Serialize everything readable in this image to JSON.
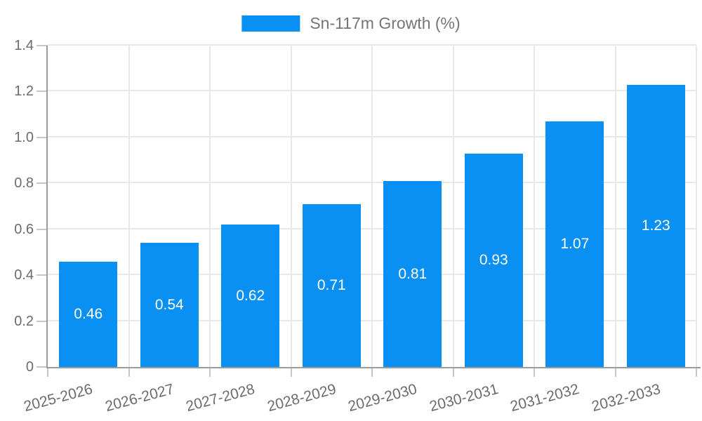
{
  "chart_data": {
    "type": "bar",
    "title": "",
    "categories": [
      "2025-2026",
      "2026-2027",
      "2027-2028",
      "2028-2029",
      "2029-2030",
      "2030-2031",
      "2031-2032",
      "2032-2033"
    ],
    "series": [
      {
        "name": "Sn-117m Growth (%)",
        "values": [
          0.46,
          0.54,
          0.62,
          0.71,
          0.81,
          0.93,
          1.07,
          1.23
        ]
      }
    ],
    "value_labels": [
      "0.46",
      "0.54",
      "0.62",
      "0.71",
      "0.81",
      "0.93",
      "1.07",
      "1.23"
    ],
    "xlabel": "",
    "ylabel": "",
    "ylim": [
      0,
      1.4
    ],
    "yticks": [
      0,
      0.2,
      0.4,
      0.6,
      0.8,
      1.0,
      1.2,
      1.4
    ],
    "ytick_labels": [
      "0",
      "0.2",
      "0.4",
      "0.6",
      "0.8",
      "1.0",
      "1.2",
      "1.4"
    ],
    "grid": true,
    "legend_position": "top-center",
    "x_label_rotation_deg": -15,
    "colors": {
      "bar": "#0a90f2",
      "grid": "#e8e8e8",
      "axis": "#9b9b9b",
      "tick": "#c6c6c6",
      "axis_text": "#6b6b6b",
      "value_label": "#ffffff",
      "legend_text": "#757575",
      "background": "#ffffff"
    }
  }
}
